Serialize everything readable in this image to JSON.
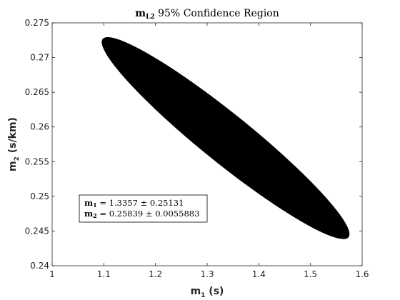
{
  "chart_data": {
    "type": "scatter",
    "title": {
      "main": "m",
      "sub": "L2",
      "rest": " 95% Confidence Region"
    },
    "xlabel": {
      "main": "m",
      "sub": "1",
      "rest": " (s)"
    },
    "ylabel": {
      "main": "m",
      "sub": "2",
      "rest": " (s/km)"
    },
    "xlim": [
      1,
      1.6
    ],
    "ylim": [
      0.24,
      0.275
    ],
    "xticks": [
      1,
      1.1,
      1.2,
      1.3,
      1.4,
      1.5,
      1.6
    ],
    "xtick_labels": [
      "1",
      "1.1",
      "1.2",
      "1.3",
      "1.4",
      "1.5",
      "1.6"
    ],
    "yticks": [
      0.24,
      0.245,
      0.25,
      0.255,
      0.26,
      0.265,
      0.27,
      0.275
    ],
    "ytick_labels": [
      "0.24",
      "0.245",
      "0.25",
      "0.255",
      "0.26",
      "0.265",
      "0.27",
      "0.275"
    ],
    "grid": false,
    "ellipse": {
      "center": [
        1.3357,
        0.25839
      ],
      "extreme_points": [
        [
          1.103,
          0.2724
        ],
        [
          1.566,
          0.2446
        ]
      ],
      "fill": "#000000"
    },
    "annotation": {
      "m1": {
        "name": "m",
        "sub": "1",
        "value": " = 1.3357 ± 0.25131"
      },
      "m2": {
        "name": "m",
        "sub": "2",
        "value": " = 0.25839 ± 0.0055883"
      }
    }
  }
}
